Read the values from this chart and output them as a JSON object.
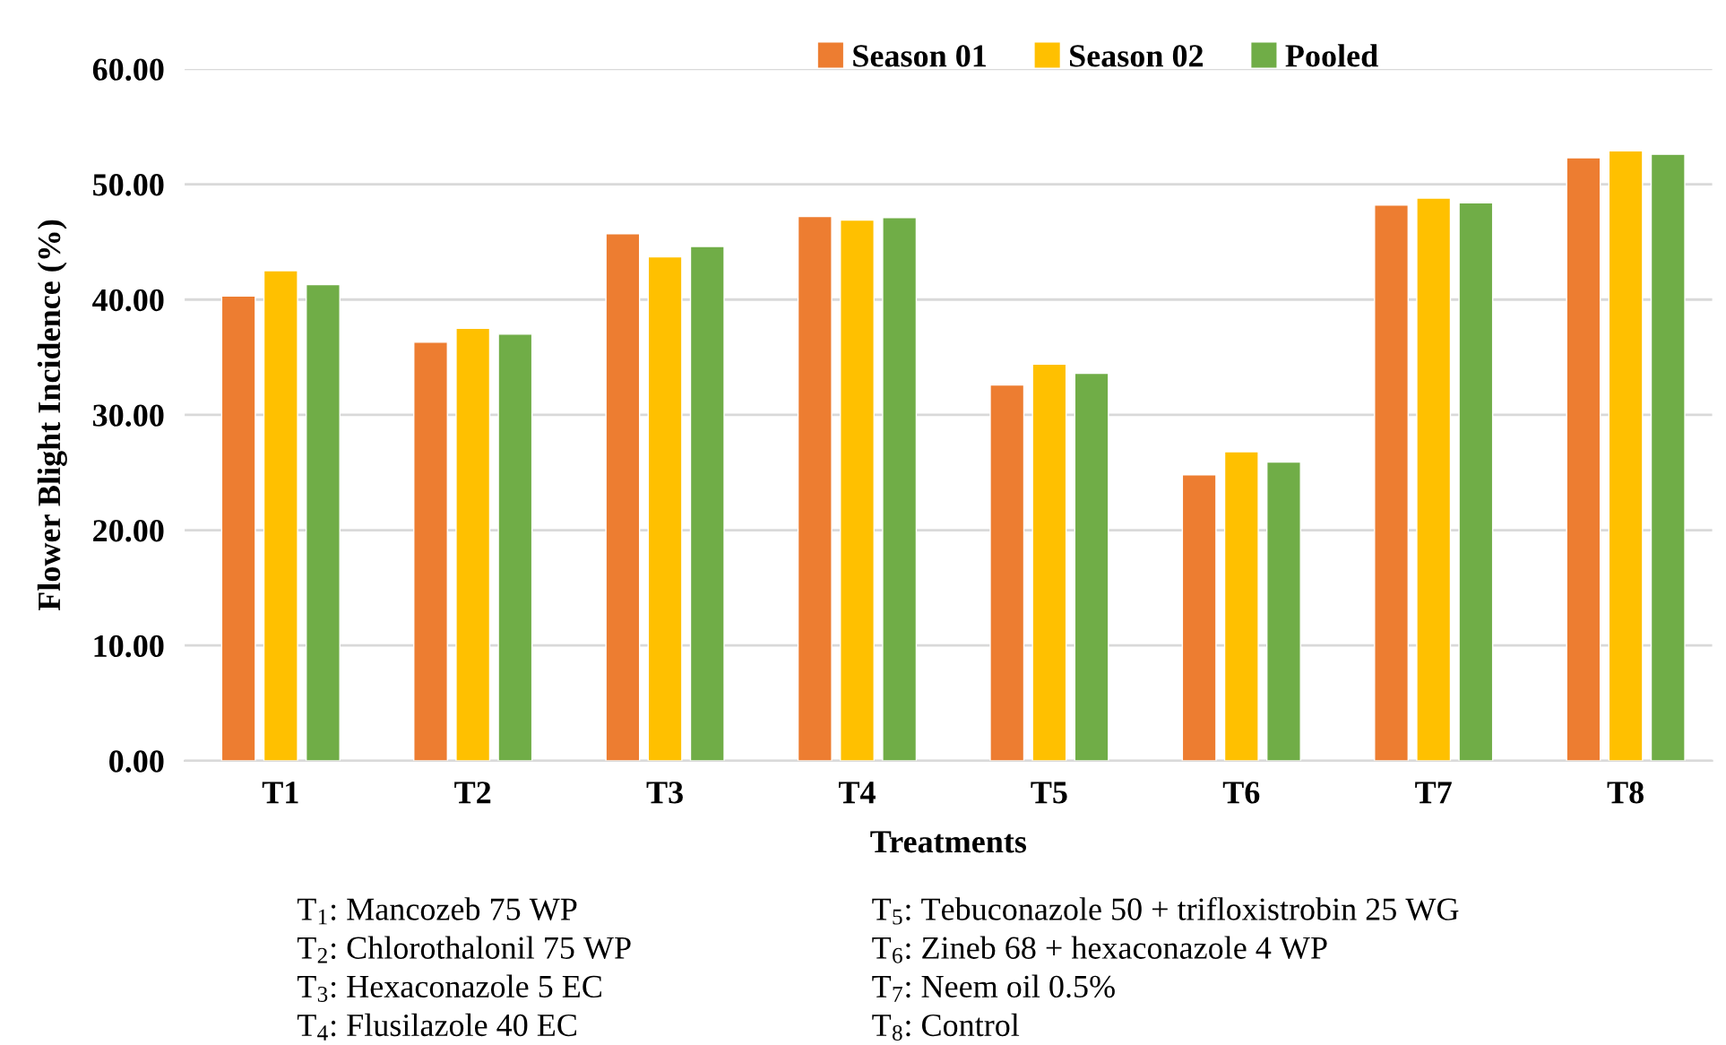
{
  "chart_data": {
    "type": "bar",
    "xlabel": "Treatments",
    "ylabel": "Flower Blight Incidence (%)",
    "categories": [
      "T1",
      "T2",
      "T3",
      "T4",
      "T5",
      "T6",
      "T7",
      "T8"
    ],
    "series": [
      {
        "name": "Season 01",
        "color": "#ed7d31",
        "values": [
          40.3,
          36.3,
          45.7,
          47.2,
          32.6,
          24.8,
          48.2,
          52.3
        ]
      },
      {
        "name": "Season 02",
        "color": "#ffc000",
        "values": [
          42.5,
          37.5,
          43.7,
          46.9,
          34.4,
          26.8,
          48.8,
          52.9
        ]
      },
      {
        "name": "Pooled",
        "color": "#70ad47",
        "values": [
          41.3,
          37.0,
          44.6,
          47.1,
          33.6,
          25.9,
          48.4,
          52.6
        ]
      }
    ],
    "ylim": [
      0,
      60
    ],
    "yticks": [
      {
        "value": 0,
        "label": "0.00"
      },
      {
        "value": 10,
        "label": "10.00"
      },
      {
        "value": 20,
        "label": "20.00"
      },
      {
        "value": 30,
        "label": "30.00"
      },
      {
        "value": 40,
        "label": "40.00"
      },
      {
        "value": 50,
        "label": "50.00"
      },
      {
        "value": 60,
        "label": "60.00"
      }
    ],
    "grid": "y",
    "legend": "top right",
    "annotations": [
      "T$_{1}$: Mancozeb 75 WP",
      "T$_{2}$: Chlorothalonil 75 WP",
      "T$_{3}$: Hexaconazole 5 EC",
      "T$_{4}$: Flusilazole 40 EC",
      "T$_{5}$: Tebuconazole 50 + trifloxistrobin 25 WG",
      "T$_{6}$: Zineb 68 + hexaconazole 4 WP",
      "T$_{7}$: Neem oil 0.5%",
      "T$_{8}$: Control"
    ]
  }
}
